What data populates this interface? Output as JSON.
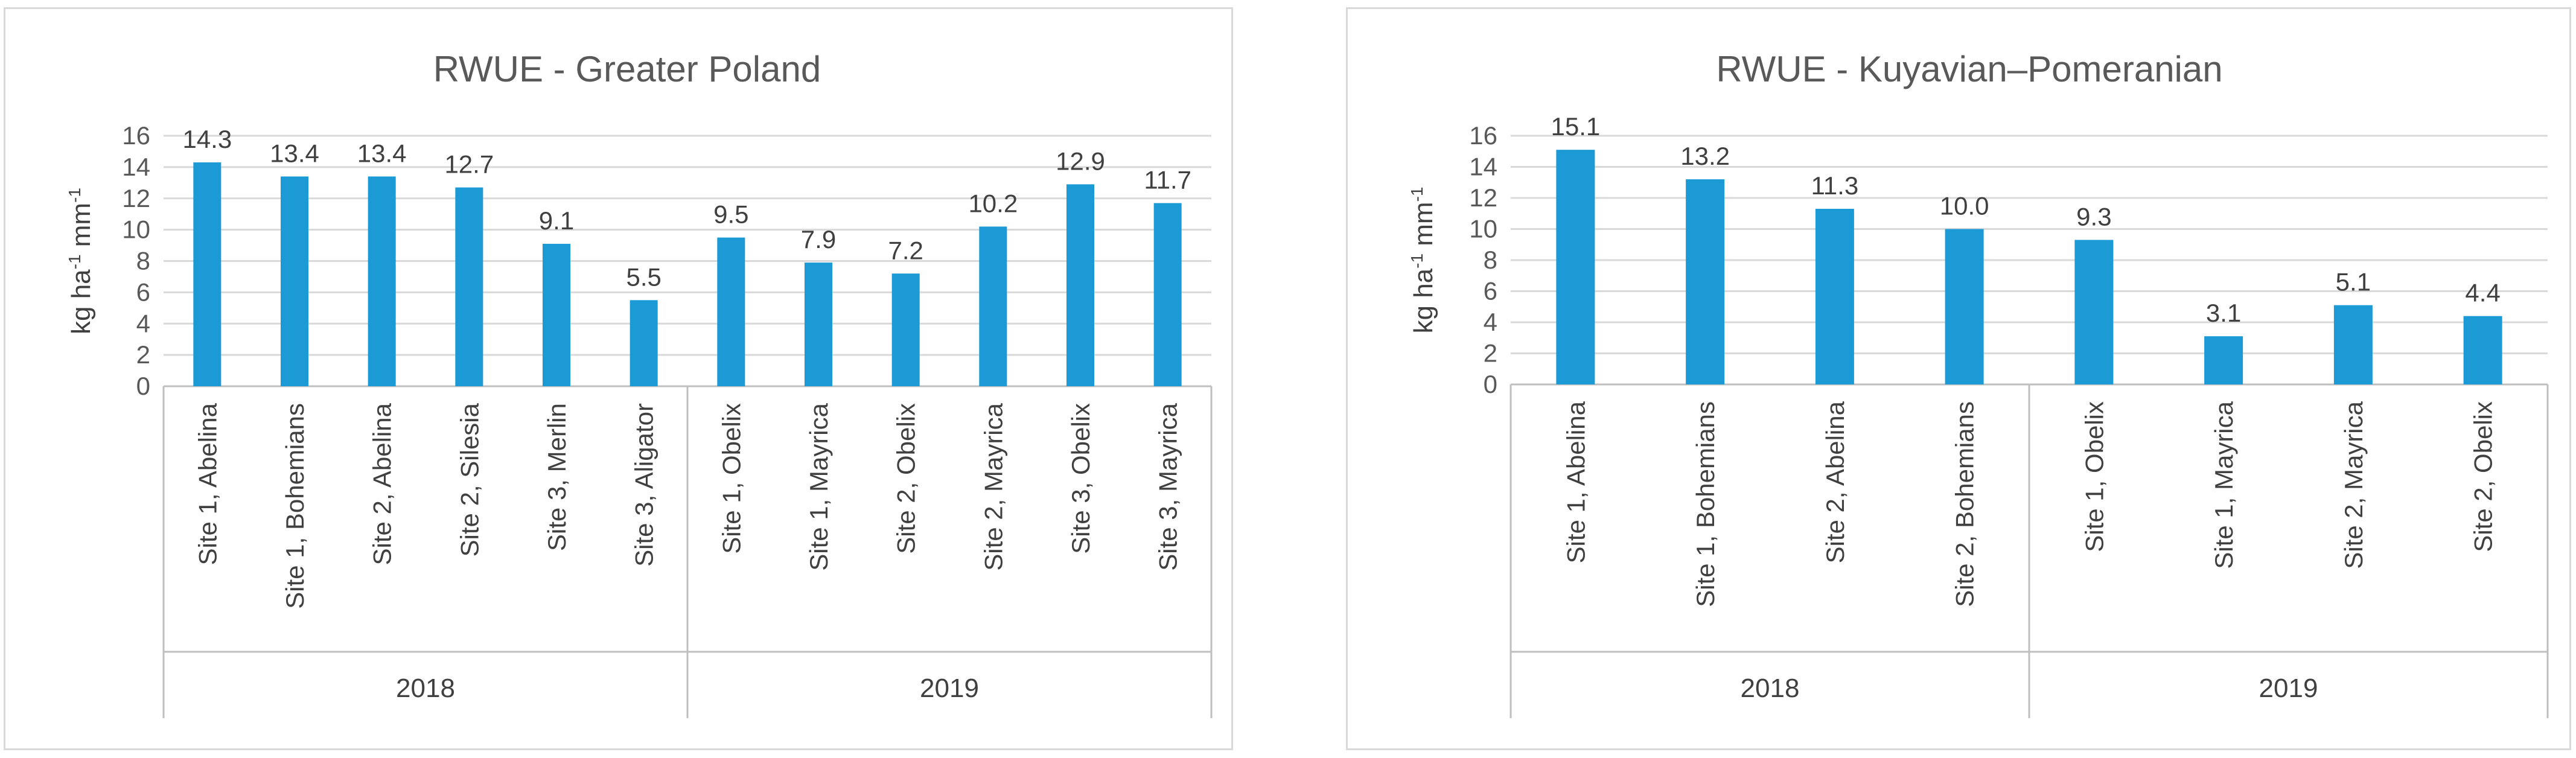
{
  "colors": {
    "bar": "#1b9ad6",
    "grid": "#d9d9d9",
    "text": "#404040"
  },
  "chart_data": [
    {
      "type": "bar",
      "title": "RWUE - Greater Poland",
      "ylabel_main": "kg ha",
      "ylabel_sup1": "-1",
      "ylabel_mid": " mm",
      "ylabel_sup2": "-1",
      "ylim": [
        0,
        16
      ],
      "yticks": [
        0,
        2,
        4,
        6,
        8,
        10,
        12,
        14,
        16
      ],
      "grid": true,
      "categories": [
        "Site 1, Abelina",
        "Site 1, Bohemians",
        "Site 2, Abelina",
        "Site 2, Silesia",
        "Site 3, Merlin",
        "Site 3, Aligator",
        "Site 1, Obelix",
        "Site 1, Mayrica",
        "Site 2, Obelix",
        "Site 2, Mayrica",
        "Site 3, Obelix",
        "Site 3, Mayrica"
      ],
      "values": [
        14.3,
        13.4,
        13.4,
        12.7,
        9.1,
        5.5,
        9.5,
        7.9,
        7.2,
        10.2,
        12.9,
        11.7
      ],
      "data_labels": [
        "14.3",
        "13.4",
        "13.4",
        "12.7",
        "9.1",
        "5.5",
        "9.5",
        "7.9",
        "7.2",
        "10.2",
        "12.9",
        "11.7"
      ],
      "groups": [
        {
          "label": "2018",
          "count": 6
        },
        {
          "label": "2019",
          "count": 6
        }
      ]
    },
    {
      "type": "bar",
      "title": "RWUE - Kuyavian–Pomeranian",
      "ylabel_main": "kg ha",
      "ylabel_sup1": "-1",
      "ylabel_mid": " mm",
      "ylabel_sup2": "-1",
      "ylim": [
        0,
        16
      ],
      "yticks": [
        0,
        2,
        4,
        6,
        8,
        10,
        12,
        14,
        16
      ],
      "grid": true,
      "categories": [
        "Site 1, Abelina",
        "Site 1, Bohemians",
        "Site 2, Abelina",
        "Site 2, Bohemians",
        "Site 1, Obelix",
        "Site 1, Mayrica",
        "Site 2, Mayrica",
        "Site 2, Obelix"
      ],
      "values": [
        15.1,
        13.2,
        11.3,
        10.0,
        9.3,
        3.1,
        5.1,
        4.4
      ],
      "data_labels": [
        "15.1",
        "13.2",
        "11.3",
        "10.0",
        "9.3",
        "3.1",
        "5.1",
        "4.4"
      ],
      "groups": [
        {
          "label": "2018",
          "count": 4
        },
        {
          "label": "2019",
          "count": 4
        }
      ]
    }
  ]
}
